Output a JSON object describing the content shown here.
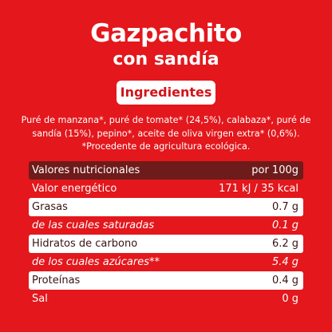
{
  "header": {
    "title": "Gazpachito",
    "subtitle": "con sandía"
  },
  "ingredients": {
    "heading": "Ingredientes",
    "lines": [
      "Puré de manzana*, puré de tomate* (24,5%), calabaza*, puré de",
      "sandía (15%), pepino*, aceite de oliva virgen extra* (0,6%).",
      "*Procedente de agricultura ecológica."
    ]
  },
  "nutrition": {
    "header": [
      "Valores nutricionales",
      "por 100g"
    ],
    "rows": [
      [
        "Valor energético",
        "171 kJ / 35 kcal"
      ],
      [
        "Grasas",
        "0.7 g"
      ],
      [
        "de las cuales saturadas",
        "0.1 g"
      ],
      [
        "Hidratos de carbono",
        "6.2 g"
      ],
      [
        "de los cuales azúcares**",
        "5.4 g"
      ],
      [
        "Proteínas",
        "0.4 g"
      ],
      [
        "Sal",
        "0 g"
      ]
    ]
  }
}
